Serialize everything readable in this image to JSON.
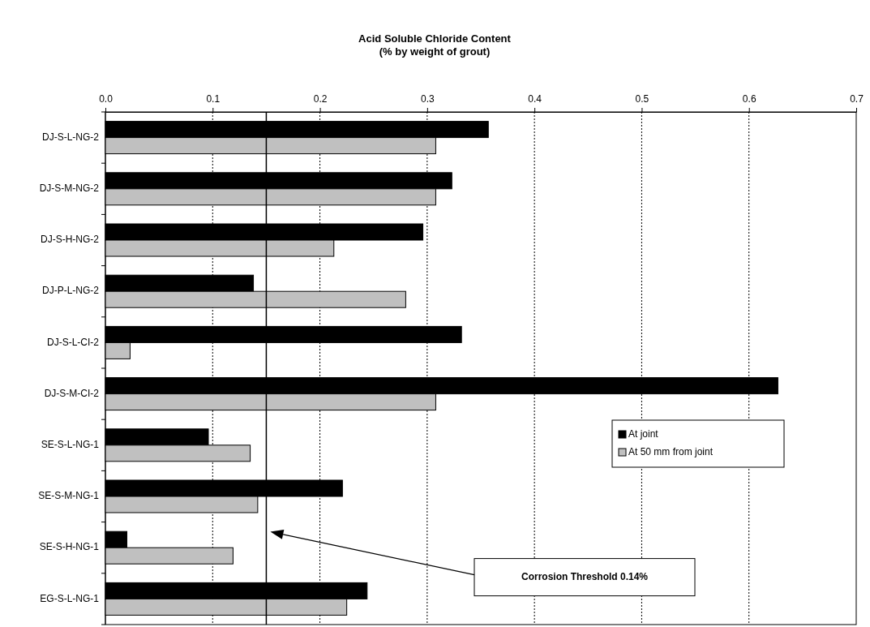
{
  "chart_data": {
    "type": "bar",
    "orientation": "horizontal",
    "title": "Acid Soluble Chloride Content",
    "subtitle": "(% by weight of grout)",
    "categories": [
      "DJ-S-L-NG-2",
      "DJ-S-M-NG-2",
      "DJ-S-H-NG-2",
      "DJ-P-L-NG-2",
      "DJ-S-L-CI-2",
      "DJ-S-M-CI-2",
      "SE-S-L-NG-1",
      "SE-S-M-NG-1",
      "SE-S-H-NG-1",
      "EG-S-L-NG-1"
    ],
    "series": [
      {
        "name": "At joint",
        "color": "#000000",
        "values": [
          0.357,
          0.323,
          0.296,
          0.138,
          0.332,
          0.627,
          0.096,
          0.221,
          0.02,
          0.244
        ]
      },
      {
        "name": "At 50 mm from joint",
        "color": "#c0c0c0",
        "values": [
          0.308,
          0.308,
          0.213,
          0.28,
          0.023,
          0.308,
          0.135,
          0.142,
          0.119,
          0.225
        ]
      }
    ],
    "xlim": [
      0,
      0.7
    ],
    "xticks": [
      {
        "value": 0,
        "label": "0.0"
      },
      {
        "value": 0.1,
        "label": "0.1"
      },
      {
        "value": 0.2,
        "label": "0.2"
      },
      {
        "value": 0.3,
        "label": "0.3"
      },
      {
        "value": 0.4,
        "label": "0.4"
      },
      {
        "value": 0.5,
        "label": "0.5"
      },
      {
        "value": 0.6,
        "label": "0.6"
      },
      {
        "value": 0.7,
        "label": "0.7"
      }
    ],
    "grid": "x",
    "legend": "right",
    "ref_lines": [
      {
        "axis": "x",
        "value": 0.15,
        "color": "#000000"
      }
    ],
    "annotations": [
      "Corrosion Threshold 0.14%"
    ]
  }
}
